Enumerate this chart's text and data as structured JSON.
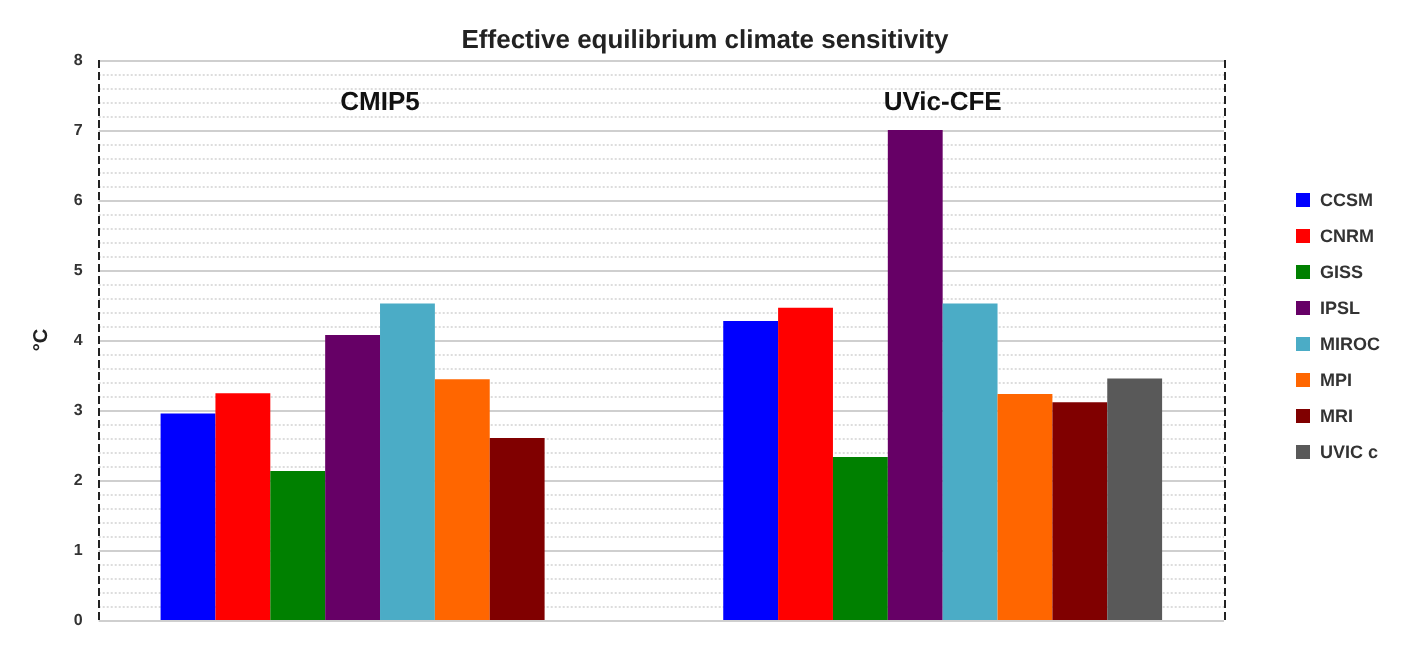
{
  "chart_data": {
    "type": "bar",
    "title": "Effective equilibrium climate sensitivity",
    "ylabel": "°C",
    "categories": [
      "CMIP5",
      "UVic-CFE"
    ],
    "series": [
      {
        "name": "CCSM",
        "color": "#0000ff",
        "values": [
          2.95,
          4.27
        ]
      },
      {
        "name": "CNRM",
        "color": "#ff0000",
        "values": [
          3.24,
          4.46
        ]
      },
      {
        "name": "GISS",
        "color": "#008000",
        "values": [
          2.13,
          2.33
        ]
      },
      {
        "name": "IPSL",
        "color": "#660066",
        "values": [
          4.07,
          7.0
        ]
      },
      {
        "name": "MIROC",
        "color": "#4bacc6",
        "values": [
          4.52,
          4.52
        ]
      },
      {
        "name": "MPI",
        "color": "#ff6600",
        "values": [
          3.44,
          3.23
        ]
      },
      {
        "name": "MRI",
        "color": "#800000",
        "values": [
          2.6,
          3.11
        ]
      },
      {
        "name": "UVIC c",
        "color": "#595959",
        "values": [
          null,
          3.45
        ]
      }
    ],
    "ylim": [
      0,
      8
    ],
    "yticks": [
      0,
      1,
      2,
      3,
      4,
      5,
      6,
      7,
      8
    ],
    "grid": "y",
    "legend": "right"
  }
}
